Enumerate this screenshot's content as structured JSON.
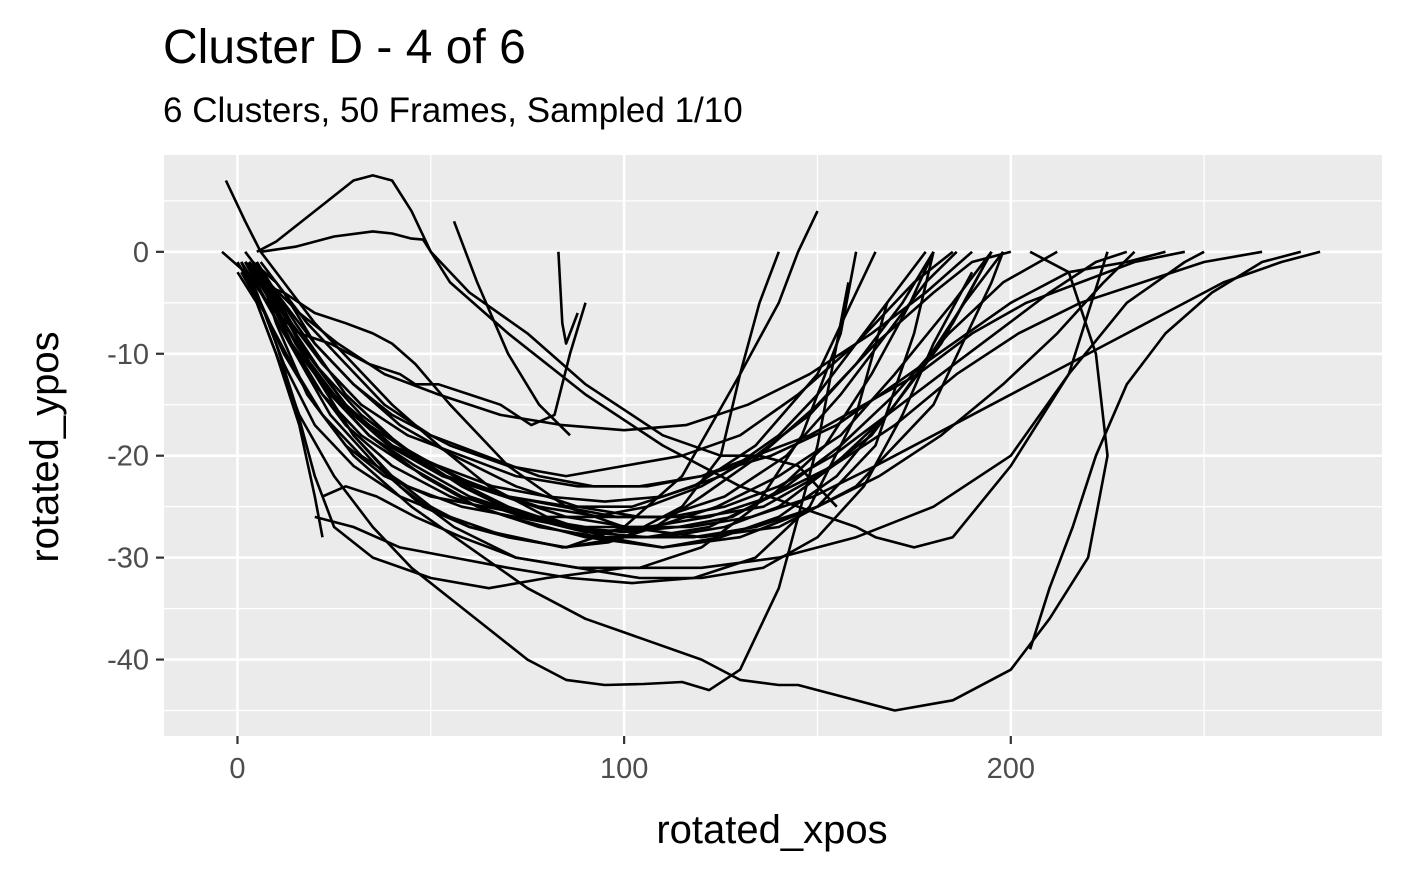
{
  "chart_data": {
    "type": "line",
    "title": "Cluster D - 4 of 6",
    "subtitle": "6 Clusters, 50 Frames, Sampled 1/10",
    "xlabel": "rotated_xpos",
    "ylabel": "rotated_ypos",
    "xlim": [
      -19,
      296
    ],
    "ylim": [
      -47.5,
      9.5
    ],
    "x_ticks": [
      0,
      100,
      200
    ],
    "x_tick_labels": [
      "0",
      "100",
      "200"
    ],
    "y_ticks": [
      0,
      -10,
      -20,
      -30,
      -40
    ],
    "y_tick_labels": [
      "0",
      "-10",
      "-20",
      "-30",
      "-40"
    ],
    "grid": true,
    "legend": "none",
    "line_color": "#000000",
    "panel_color": "#ebebeb",
    "series": [
      {
        "x": [
          -4,
          5,
          12,
          20,
          28,
          35,
          40,
          46,
          55,
          70,
          85,
          100,
          120,
          140,
          160,
          180,
          190,
          195,
          198
        ],
        "y": [
          0,
          -3,
          -4,
          -6,
          -7,
          -8,
          -9,
          -11,
          -15,
          -21,
          -25,
          -27,
          -28,
          -27,
          -23,
          -15,
          -7,
          -3,
          0
        ]
      },
      {
        "x": [
          -3,
          2,
          6,
          12,
          20,
          30,
          40,
          52,
          65,
          80,
          95,
          110,
          125,
          140,
          155,
          170,
          185,
          195
        ],
        "y": [
          7,
          3,
          0,
          -3,
          -7,
          -11,
          -15,
          -19,
          -23,
          -26,
          -28,
          -29,
          -28,
          -26,
          -22,
          -15,
          -7,
          0
        ]
      },
      {
        "x": [
          0,
          5,
          10,
          16,
          20,
          22
        ],
        "y": [
          -2,
          -5,
          -10,
          -17,
          -24,
          -28
        ]
      },
      {
        "x": [
          2,
          6,
          10,
          16,
          24,
          34,
          42,
          46,
          52,
          60,
          68,
          76,
          82,
          86,
          90
        ],
        "y": [
          -2,
          -4,
          -6,
          -8,
          -9,
          -11,
          -12,
          -13,
          -13,
          -14,
          -15,
          -17,
          -16,
          -10,
          -5
        ]
      },
      {
        "x": [
          5,
          10,
          20,
          30,
          35,
          40,
          45,
          50,
          60,
          75,
          90,
          110,
          125,
          135,
          145,
          155
        ],
        "y": [
          0,
          1,
          4,
          7,
          7.5,
          7,
          4,
          0,
          -4,
          -8,
          -13,
          -18,
          -20,
          -20,
          -21,
          -25
        ]
      },
      {
        "x": [
          6,
          15,
          25,
          35,
          40,
          45,
          48,
          55,
          70,
          90,
          110,
          130,
          145,
          160,
          165,
          175,
          185,
          200,
          215,
          230,
          245,
          250
        ],
        "y": [
          0,
          0.5,
          1.5,
          2,
          1.8,
          1.3,
          1.2,
          -3,
          -8,
          -14,
          -19,
          -23,
          -25,
          -27,
          -28,
          -29,
          -28,
          -21,
          -12,
          -5,
          -1,
          0
        ]
      },
      {
        "x": [
          2,
          10,
          20,
          30,
          40,
          50,
          60,
          70,
          85,
          100,
          115,
          130,
          140,
          145,
          150
        ],
        "y": [
          0,
          -4,
          -12,
          -18,
          -22,
          -25,
          -27,
          -28,
          -29,
          -27,
          -22,
          -12,
          -5,
          0,
          4
        ]
      },
      {
        "x": [
          3,
          10,
          20,
          30,
          40,
          55,
          70,
          85,
          100,
          115,
          130,
          145,
          160,
          175,
          185
        ],
        "y": [
          -1,
          -4,
          -9,
          -13,
          -16,
          -19,
          -21,
          -22,
          -21,
          -20,
          -18,
          -14,
          -9,
          -3,
          0
        ]
      },
      {
        "x": [
          0,
          6,
          12,
          20,
          30,
          42,
          55,
          70,
          85,
          100,
          115,
          125,
          130,
          135,
          140
        ],
        "y": [
          -1,
          -5,
          -11,
          -17,
          -21,
          -24,
          -26,
          -28,
          -29,
          -28,
          -25,
          -20,
          -12,
          -5,
          0
        ]
      },
      {
        "x": [
          3,
          10,
          18,
          28,
          40,
          55,
          70,
          90,
          110,
          130,
          150,
          165,
          175,
          180
        ],
        "y": [
          -1,
          -6,
          -12,
          -17,
          -21,
          -24,
          -26,
          -28,
          -29,
          -28,
          -25,
          -19,
          -8,
          0
        ]
      },
      {
        "x": [
          1,
          5,
          10,
          15,
          20,
          25,
          35,
          50,
          65,
          80,
          100,
          120,
          140,
          160,
          180,
          200,
          215,
          225
        ],
        "y": [
          -1,
          -4,
          -9,
          -15,
          -22,
          -27,
          -30,
          -32,
          -33,
          -32,
          -31,
          -31,
          -30,
          -28,
          -25,
          -20,
          -12,
          0
        ]
      },
      {
        "x": [
          4,
          8,
          14,
          22,
          32,
          44,
          58,
          72,
          88,
          104,
          120,
          138,
          155,
          170,
          185,
          200,
          215,
          230,
          240
        ],
        "y": [
          -1,
          -3,
          -7,
          -11,
          -15,
          -18,
          -20,
          -22,
          -23,
          -23,
          -22,
          -20,
          -17,
          -13,
          -9,
          -5,
          -2,
          -1,
          0
        ]
      },
      {
        "x": [
          2,
          12,
          24,
          36,
          48,
          60,
          72,
          84,
          96,
          108,
          120,
          135,
          150,
          165,
          180,
          190,
          200
        ],
        "y": [
          -1,
          -8,
          -16,
          -21,
          -25,
          -27,
          -28,
          -29,
          -28.5,
          -27,
          -24,
          -20,
          -15,
          -9,
          -4,
          -1,
          0
        ]
      },
      {
        "x": [
          1,
          6,
          12,
          20,
          28,
          38,
          50,
          64,
          78,
          92,
          106,
          120,
          134,
          148,
          160,
          172,
          180
        ],
        "y": [
          -1,
          -5,
          -10,
          -15,
          -19,
          -22,
          -24,
          -25,
          -26,
          -26,
          -25,
          -23,
          -20,
          -16,
          -11,
          -5,
          0
        ]
      },
      {
        "x": [
          3,
          8,
          15,
          24,
          34,
          46,
          60,
          76,
          92,
          108,
          124,
          140,
          156,
          170,
          185,
          195
        ],
        "y": [
          -1,
          -4,
          -9,
          -14,
          -18,
          -21,
          -24,
          -26,
          -27.5,
          -27,
          -25,
          -22,
          -18,
          -12,
          -5,
          0
        ]
      },
      {
        "x": [
          5,
          10,
          18,
          30,
          45,
          60,
          75,
          90,
          105,
          120,
          130,
          140,
          145,
          150,
          160,
          170,
          185,
          200,
          210,
          220,
          225,
          222,
          215,
          205
        ],
        "y": [
          -1,
          -7,
          -14,
          -20,
          -25,
          -29,
          -33,
          -36,
          -38,
          -40,
          -42,
          -42.5,
          -42.5,
          -43,
          -44,
          -45,
          -44,
          -41,
          -36,
          -30,
          -20,
          -10,
          -2,
          0
        ]
      },
      {
        "x": [
          2,
          8,
          16,
          25,
          35,
          45,
          55,
          65,
          75,
          85,
          95,
          105,
          115,
          122,
          130,
          140,
          150,
          158
        ],
        "y": [
          -2,
          -8,
          -16,
          -22,
          -27,
          -31,
          -34,
          -37,
          -40,
          -42,
          -42.5,
          -42.4,
          -42.2,
          -43,
          -41,
          -33,
          -19,
          -3
        ]
      },
      {
        "x": [
          3,
          9,
          15,
          22,
          30,
          40,
          52,
          66,
          80,
          95,
          110,
          125,
          140,
          150,
          160,
          170,
          178
        ],
        "y": [
          -1,
          -4,
          -8,
          -12,
          -16,
          -19,
          -21,
          -23,
          -24,
          -24.5,
          -24,
          -22,
          -18,
          -14,
          -9,
          -4,
          0
        ]
      },
      {
        "x": [
          4,
          12,
          22,
          34,
          48,
          62,
          78,
          94,
          110,
          126,
          140,
          154,
          168,
          182,
          195
        ],
        "y": [
          -2,
          -7,
          -13,
          -18,
          -22,
          -25,
          -27,
          -28,
          -28,
          -27,
          -25,
          -21,
          -16,
          -9,
          0
        ]
      },
      {
        "x": [
          1,
          7,
          14,
          22,
          32,
          44,
          58,
          72,
          86,
          100,
          114,
          128,
          142,
          156,
          170,
          184,
          198,
          212
        ],
        "y": [
          -2,
          -6,
          -11,
          -16,
          -20,
          -23,
          -25,
          -26,
          -27,
          -27.5,
          -27,
          -26,
          -23,
          -19,
          -14,
          -8,
          -3,
          0
        ]
      },
      {
        "x": [
          2,
          8,
          16,
          26,
          38,
          52,
          68,
          84,
          100,
          116,
          132,
          148,
          164,
          178,
          190
        ],
        "y": [
          -1,
          -3,
          -6,
          -9,
          -12,
          -14,
          -16,
          -17,
          -17.5,
          -17,
          -15,
          -12,
          -8,
          -4,
          0
        ]
      },
      {
        "x": [
          3,
          10,
          18,
          28,
          40,
          54,
          70,
          86,
          102,
          118,
          134,
          150,
          165
        ],
        "y": [
          -1,
          -5,
          -10,
          -15,
          -19,
          -22,
          -24,
          -25,
          -25,
          -23,
          -19,
          -12,
          0
        ]
      },
      {
        "x": [
          5,
          12,
          20,
          30,
          42,
          56,
          72,
          88,
          104,
          120,
          134,
          146,
          156,
          160
        ],
        "y": [
          -1,
          -6,
          -12,
          -18,
          -23,
          -27,
          -30,
          -31,
          -31,
          -29,
          -25,
          -18,
          -8,
          0
        ]
      },
      {
        "x": [
          1,
          6,
          12,
          20,
          30,
          42,
          56,
          70,
          84,
          98,
          112,
          126,
          140,
          154,
          168,
          182,
          196,
          210,
          222,
          230
        ],
        "y": [
          -1,
          -4,
          -8,
          -12,
          -16,
          -19,
          -22,
          -24,
          -25,
          -26,
          -26,
          -25,
          -23,
          -20,
          -16,
          -12,
          -8,
          -4,
          -1,
          0
        ]
      },
      {
        "x": [
          4,
          10,
          18,
          28,
          38,
          50,
          64,
          78,
          92,
          106,
          120,
          134,
          148,
          162,
          176,
          190,
          204,
          218,
          232,
          245
        ],
        "y": [
          -1,
          -3,
          -7,
          -11,
          -15,
          -18,
          -20,
          -22,
          -23,
          -23,
          -22,
          -20,
          -18,
          -15,
          -12,
          -8,
          -5,
          -3,
          -1,
          0
        ]
      },
      {
        "x": [
          2,
          10,
          20,
          32,
          46,
          62,
          78,
          94,
          110,
          126,
          142,
          156,
          168,
          178,
          186
        ],
        "y": [
          -1,
          -5,
          -11,
          -16,
          -20,
          -23,
          -25,
          -26,
          -26,
          -24,
          -20,
          -14,
          -8,
          -3,
          0
        ]
      },
      {
        "x": [
          3,
          8,
          14,
          22,
          32,
          44,
          58,
          74,
          90,
          106,
          122,
          138,
          154,
          170,
          186,
          202,
          218,
          234,
          250,
          265
        ],
        "y": [
          -1,
          -4,
          -9,
          -14,
          -18,
          -21,
          -24,
          -26,
          -27,
          -27,
          -26,
          -24,
          -21,
          -17,
          -12,
          -8,
          -5,
          -3,
          -1,
          0
        ]
      },
      {
        "x": [
          5,
          15,
          28,
          42,
          58,
          74,
          90,
          106,
          122,
          138,
          152,
          164,
          174,
          180
        ],
        "y": [
          -1,
          -7,
          -14,
          -19,
          -23,
          -26,
          -27.5,
          -28,
          -27,
          -24,
          -19,
          -12,
          -5,
          0
        ]
      },
      {
        "x": [
          2,
          9,
          17,
          27,
          39,
          53,
          69,
          85,
          101,
          117,
          133,
          149,
          165,
          180,
          195,
          210,
          225,
          240,
          255,
          270,
          280
        ],
        "y": [
          -1,
          -5,
          -10,
          -15,
          -19,
          -22,
          -24,
          -26,
          -27,
          -27,
          -26,
          -24,
          -21,
          -18,
          -15,
          -12,
          -9,
          -6,
          -3,
          -1,
          0
        ]
      },
      {
        "x": [
          83,
          84,
          85,
          88
        ],
        "y": [
          0,
          -7,
          -9,
          -6
        ]
      },
      {
        "x": [
          56,
          62,
          70,
          78,
          86
        ],
        "y": [
          3,
          -3,
          -10,
          -15,
          -18
        ]
      },
      {
        "x": [
          205,
          210,
          216,
          222,
          230,
          240,
          252,
          265,
          275
        ],
        "y": [
          -39,
          -33,
          -27,
          -20,
          -13,
          -8,
          -4,
          -1,
          0
        ]
      },
      {
        "x": [
          22,
          28,
          36,
          46,
          58,
          72,
          88,
          104,
          120,
          136,
          150,
          162,
          172,
          180,
          190
        ],
        "y": [
          -24,
          -23,
          -24,
          -26,
          -28,
          -30,
          -31,
          -32,
          -32,
          -31,
          -28,
          -23,
          -16,
          -9,
          -2
        ]
      },
      {
        "x": [
          20,
          30,
          42,
          56,
          70,
          86,
          102,
          118,
          134,
          148,
          160,
          168
        ],
        "y": [
          -26,
          -27,
          -29,
          -30,
          -31,
          -32,
          -32.5,
          -32,
          -30,
          -25,
          -16,
          -5
        ]
      },
      {
        "x": [
          6,
          12,
          20,
          30,
          42,
          56,
          72,
          88,
          104,
          120,
          136,
          150,
          164,
          176,
          188,
          198
        ],
        "y": [
          -1,
          -4,
          -9,
          -13,
          -17,
          -20,
          -23,
          -25,
          -26,
          -26,
          -25,
          -22,
          -18,
          -12,
          -5,
          0
        ]
      },
      {
        "x": [
          4,
          10,
          18,
          28,
          40,
          54,
          70,
          86,
          102,
          118,
          134,
          150,
          166,
          182,
          198,
          212,
          224,
          232
        ],
        "y": [
          -1,
          -5,
          -10,
          -15,
          -19,
          -22,
          -25,
          -27,
          -28,
          -28,
          -27,
          -25,
          -22,
          -18,
          -13,
          -8,
          -3,
          0
        ]
      }
    ]
  }
}
